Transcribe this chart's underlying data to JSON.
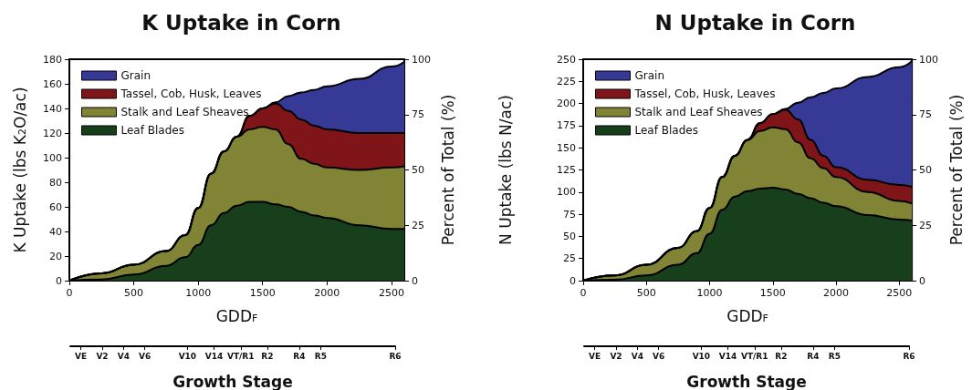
{
  "chart_data": [
    {
      "type": "area",
      "title": "K Uptake in Corn",
      "xlabel": "GDD$_{F}$",
      "ylabel": "K Uptake (lbs K$_{2}$O/ac)",
      "y2label": "Percent of Total (%)",
      "stacked": true,
      "legend": "top left",
      "x": [
        0,
        250,
        500,
        750,
        900,
        1000,
        1100,
        1200,
        1300,
        1400,
        1500,
        1600,
        1700,
        1800,
        1900,
        2000,
        2250,
        2500,
        2600
      ],
      "xlim": [
        0,
        2600
      ],
      "xticks": [
        0,
        500,
        1000,
        1500,
        2000,
        2500
      ],
      "ylim": [
        0,
        180
      ],
      "yticks": [
        0,
        20,
        40,
        60,
        80,
        100,
        120,
        140,
        160,
        180
      ],
      "y2lim": [
        0,
        100
      ],
      "y2ticks": [
        0,
        25,
        50,
        75,
        100
      ],
      "series": [
        {
          "name": "Leaf Blades",
          "color": "#173f1c",
          "values": [
            0,
            1,
            5,
            12,
            19,
            29,
            45,
            55,
            61,
            64,
            64,
            62,
            60,
            56,
            53,
            51,
            45,
            42,
            42
          ]
        },
        {
          "name": "Stalk and Leaf Sheaves",
          "color": "#808434",
          "values": [
            0,
            5,
            8,
            12,
            18,
            30,
            42,
            50,
            56,
            59,
            61,
            61,
            51,
            43,
            42,
            41,
            45,
            50,
            51
          ]
        },
        {
          "name": "Tassel, Cob, Husk, Leaves",
          "color": "#7f1519",
          "values": [
            0,
            0,
            0,
            0,
            0,
            0,
            0,
            0,
            0,
            11,
            15,
            21,
            27,
            32,
            31,
            31,
            30,
            28,
            27
          ]
        },
        {
          "name": "Grain",
          "color": "#363996",
          "values": [
            0,
            0,
            0,
            0,
            0,
            0,
            0,
            0,
            0,
            0,
            0,
            1,
            12,
            22,
            29,
            35,
            44,
            54,
            58
          ]
        }
      ]
    },
    {
      "type": "area",
      "title": "N Uptake in Corn",
      "xlabel": "GDD$_{F}$",
      "ylabel": "N Uptake (lbs N/ac)",
      "y2label": "Percent of Total (%)",
      "stacked": true,
      "legend": "top left",
      "x": [
        0,
        250,
        500,
        750,
        900,
        1000,
        1100,
        1200,
        1300,
        1400,
        1500,
        1600,
        1700,
        1800,
        1900,
        2000,
        2250,
        2500,
        2600
      ],
      "xlim": [
        0,
        2600
      ],
      "xticks": [
        0,
        500,
        1000,
        1500,
        2000,
        2500
      ],
      "ylim": [
        0,
        250
      ],
      "yticks": [
        0,
        25,
        50,
        75,
        100,
        125,
        150,
        175,
        200,
        225,
        250
      ],
      "y2lim": [
        0,
        100
      ],
      "y2ticks": [
        0,
        25,
        50,
        75,
        100
      ],
      "series": [
        {
          "name": "Leaf Blades",
          "color": "#173f1c",
          "values": [
            0,
            1,
            6,
            18,
            31,
            53,
            80,
            95,
            101,
            104,
            105,
            103,
            98,
            93,
            88,
            84,
            74,
            69,
            68
          ]
        },
        {
          "name": "Stalk and Leaf Sheaves",
          "color": "#808434",
          "values": [
            0,
            5,
            12,
            19,
            25,
            29,
            37,
            46,
            58,
            65,
            68,
            68,
            58,
            45,
            39,
            33,
            26,
            21,
            19
          ]
        },
        {
          "name": "Tassel, Cob, Husk, Leaves",
          "color": "#7f1519",
          "values": [
            0,
            0,
            0,
            0,
            0,
            0,
            0,
            0,
            0,
            9,
            15,
            22,
            26,
            21,
            14,
            11,
            14,
            18,
            19
          ]
        },
        {
          "name": "Grain",
          "color": "#363996",
          "values": [
            0,
            0,
            0,
            0,
            0,
            0,
            0,
            0,
            0,
            0,
            0,
            1,
            19,
            48,
            71,
            89,
            116,
            133,
            142
          ]
        }
      ]
    },
    {
      "type": "other",
      "xlabel": "Growth Stage",
      "categories": [
        null,
        null,
        "VE",
        null,
        null,
        null,
        "V2",
        null,
        null,
        null,
        "V4",
        null,
        null,
        null,
        "V6",
        null,
        null,
        null,
        null,
        null,
        null,
        null,
        "V10",
        null,
        null,
        null,
        null,
        "V14",
        null,
        null,
        null,
        null,
        "VT/R1",
        null,
        null,
        null,
        null,
        "R2",
        null,
        null,
        null,
        null,
        null,
        "R4",
        null,
        null,
        null,
        "R5",
        null,
        null,
        null,
        null,
        null,
        null,
        null,
        null,
        null,
        null,
        null,
        null,
        null,
        "R6"
      ]
    },
    {
      "type": "other",
      "xlabel": "Growth Stage",
      "categories": [
        null,
        null,
        "VE",
        null,
        null,
        null,
        "V2",
        null,
        null,
        null,
        "V4",
        null,
        null,
        null,
        "V6",
        null,
        null,
        null,
        null,
        null,
        null,
        null,
        "V10",
        null,
        null,
        null,
        null,
        "V14",
        null,
        null,
        null,
        null,
        "VT/R1",
        null,
        null,
        null,
        null,
        "R2",
        null,
        null,
        null,
        null,
        null,
        "R4",
        null,
        null,
        null,
        "R5",
        null,
        null,
        null,
        null,
        null,
        null,
        null,
        null,
        null,
        null,
        null,
        null,
        null,
        "R6"
      ]
    }
  ]
}
